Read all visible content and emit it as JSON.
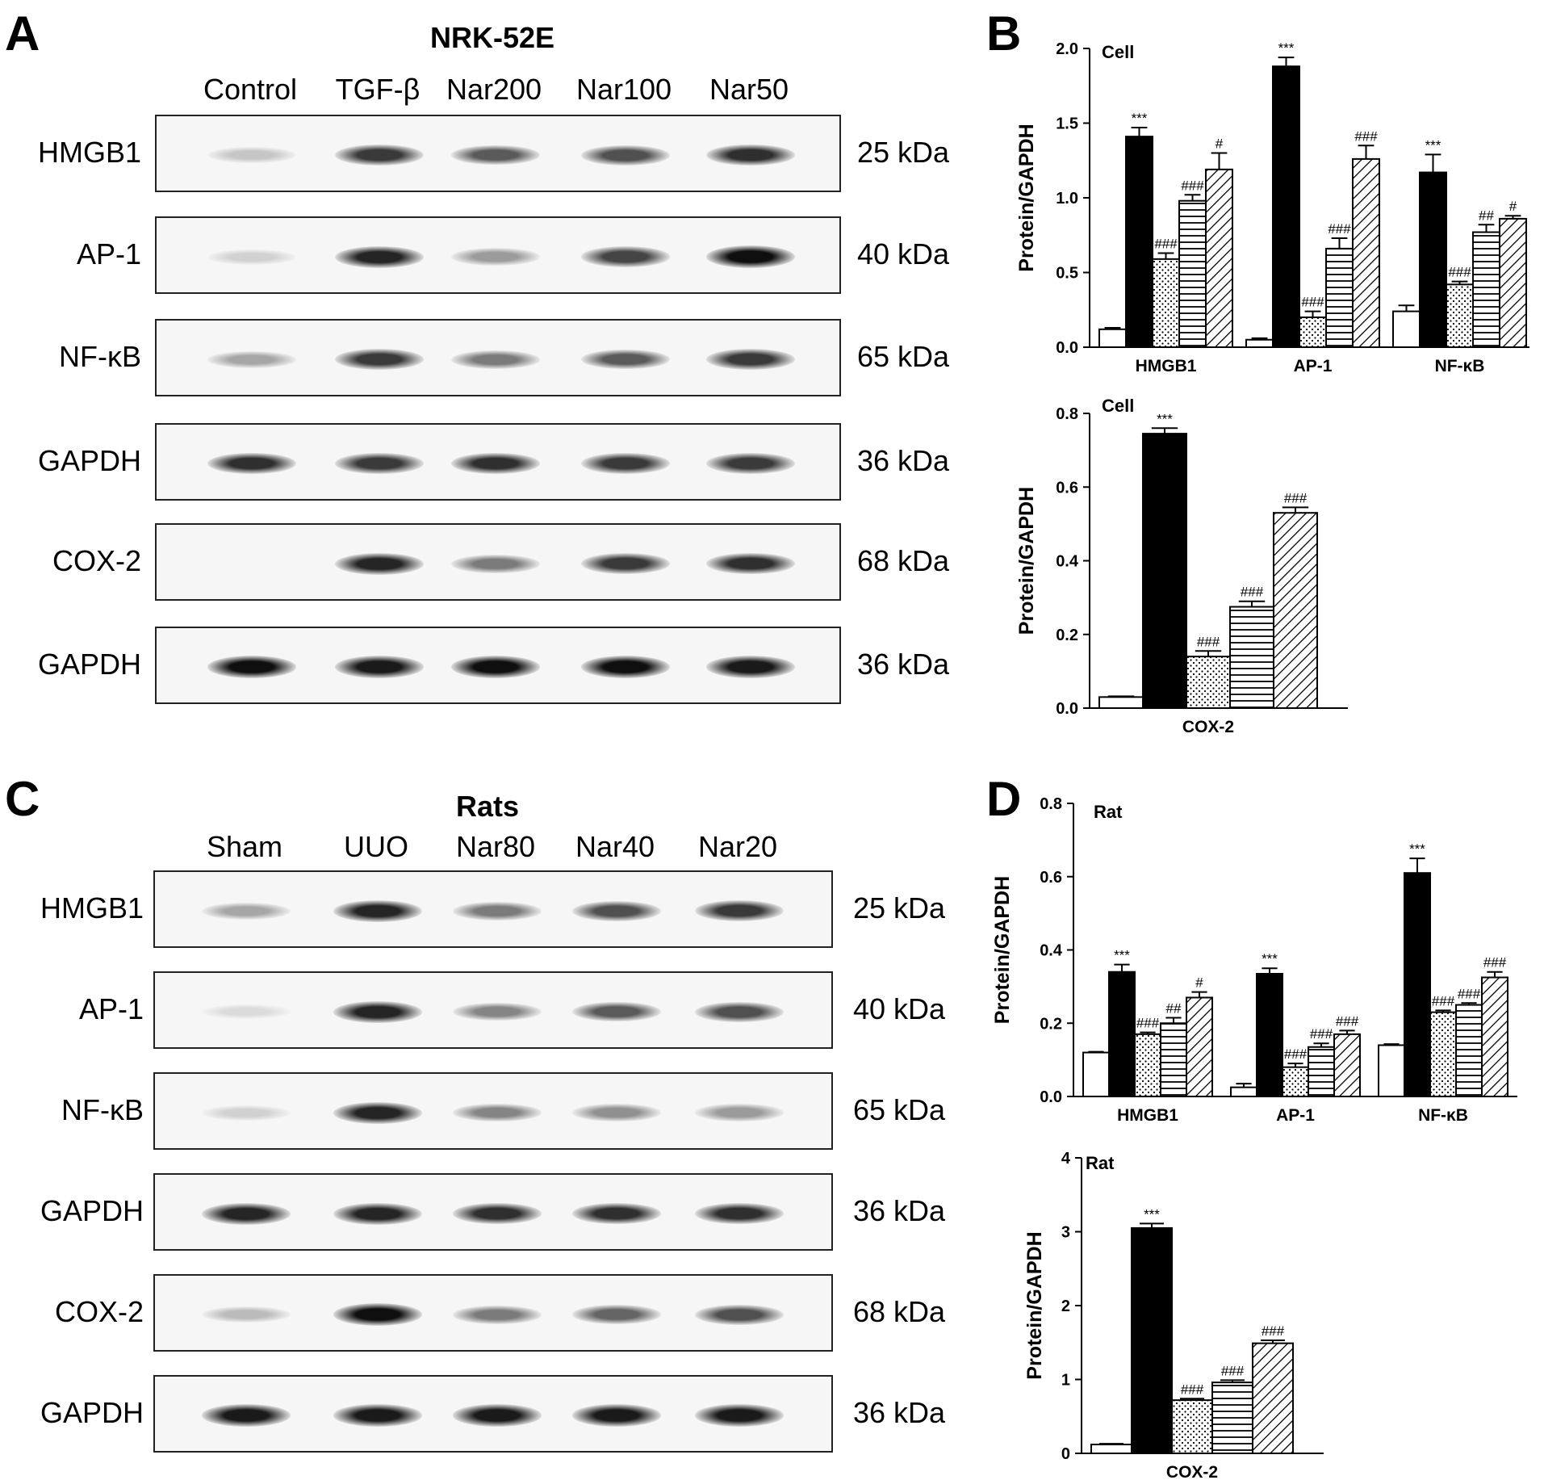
{
  "panels": {
    "A": {
      "letter": "A",
      "title": "NRK-52E",
      "lanes": [
        "Control",
        "TGF-β",
        "Nar200",
        "Nar100",
        "Nar50"
      ],
      "rows": [
        {
          "protein": "HMGB1",
          "kda": "25 kDa"
        },
        {
          "protein": "AP-1",
          "kda": "40 kDa"
        },
        {
          "protein": "NF-κB",
          "kda": "65 kDa"
        },
        {
          "protein": "GAPDH",
          "kda": "36 kDa"
        },
        {
          "protein": "COX-2",
          "kda": "68 kDa"
        },
        {
          "protein": "GAPDH",
          "kda": "36 kDa"
        }
      ]
    },
    "B": {
      "letter": "B"
    },
    "C": {
      "letter": "C",
      "title": "Rats",
      "lanes": [
        "Sham",
        "UUO",
        "Nar80",
        "Nar40",
        "Nar20"
      ],
      "rows": [
        {
          "protein": "HMGB1",
          "kda": "25 kDa"
        },
        {
          "protein": "AP-1",
          "kda": "40 kDa"
        },
        {
          "protein": "NF-κB",
          "kda": "65 kDa"
        },
        {
          "protein": "GAPDH",
          "kda": "36 kDa"
        },
        {
          "protein": "COX-2",
          "kda": "68 kDa"
        },
        {
          "protein": "GAPDH",
          "kda": "36 kDa"
        }
      ]
    },
    "D": {
      "letter": "D"
    }
  },
  "band_intensity": {
    "A": [
      [
        0.15,
        0.8,
        0.65,
        0.7,
        0.85
      ],
      [
        0.1,
        0.9,
        0.35,
        0.75,
        1.0
      ],
      [
        0.3,
        0.8,
        0.5,
        0.65,
        0.8
      ],
      [
        0.85,
        0.8,
        0.85,
        0.8,
        0.8
      ],
      [
        0.0,
        0.9,
        0.5,
        0.8,
        0.85
      ],
      [
        1.0,
        0.95,
        1.0,
        1.0,
        0.95
      ]
    ],
    "C": [
      [
        0.3,
        0.9,
        0.5,
        0.7,
        0.8
      ],
      [
        0.05,
        0.9,
        0.45,
        0.65,
        0.7
      ],
      [
        0.1,
        0.9,
        0.45,
        0.4,
        0.35
      ],
      [
        0.9,
        0.9,
        0.85,
        0.85,
        0.85
      ],
      [
        0.2,
        1.0,
        0.5,
        0.6,
        0.7
      ],
      [
        0.95,
        0.95,
        0.95,
        0.95,
        0.95
      ]
    ]
  },
  "chart_data": [
    {
      "id": "B-top",
      "type": "bar",
      "title": "Cell",
      "ylabel": "Protein/GAPDH",
      "categories": [
        "HMGB1",
        "AP-1",
        "NF-κB"
      ],
      "ylim": [
        0,
        2.0
      ],
      "yticks": [
        "0.0",
        "0.5",
        "1.0",
        "1.5",
        "2.0"
      ],
      "series": [
        {
          "values": [
            0.12,
            0.05,
            0.24
          ],
          "errors": [
            0.01,
            0.01,
            0.04
          ],
          "marks": [
            "",
            "",
            ""
          ]
        },
        {
          "values": [
            1.41,
            1.88,
            1.17
          ],
          "errors": [
            0.06,
            0.06,
            0.12
          ],
          "marks": [
            "***",
            "***",
            "***"
          ]
        },
        {
          "values": [
            0.59,
            0.2,
            0.42
          ],
          "errors": [
            0.04,
            0.04,
            0.02
          ],
          "marks": [
            "###",
            "###",
            "###"
          ]
        },
        {
          "values": [
            0.98,
            0.66,
            0.77
          ],
          "errors": [
            0.04,
            0.07,
            0.05
          ],
          "marks": [
            "###",
            "###",
            "##"
          ]
        },
        {
          "values": [
            1.19,
            1.26,
            0.86
          ],
          "errors": [
            0.11,
            0.09,
            0.02
          ],
          "marks": [
            "#",
            "###",
            "#"
          ]
        }
      ]
    },
    {
      "id": "B-bottom",
      "type": "bar",
      "title": "Cell",
      "ylabel": "Protein/GAPDH",
      "categories": [
        "COX-2"
      ],
      "ylim": [
        0,
        0.8
      ],
      "yticks": [
        "0.0",
        "0.2",
        "0.4",
        "0.6",
        "0.8"
      ],
      "series": [
        {
          "values": [
            0.03
          ],
          "errors": [
            0.002
          ],
          "marks": [
            ""
          ]
        },
        {
          "values": [
            0.745
          ],
          "errors": [
            0.015
          ],
          "marks": [
            "***"
          ]
        },
        {
          "values": [
            0.14
          ],
          "errors": [
            0.015
          ],
          "marks": [
            "###"
          ]
        },
        {
          "values": [
            0.275
          ],
          "errors": [
            0.015
          ],
          "marks": [
            "###"
          ]
        },
        {
          "values": [
            0.53
          ],
          "errors": [
            0.015
          ],
          "marks": [
            "###"
          ]
        }
      ]
    },
    {
      "id": "D-top",
      "type": "bar",
      "title": "Rat",
      "ylabel": "Protein/GAPDH",
      "categories": [
        "HMGB1",
        "AP-1",
        "NF-κB"
      ],
      "ylim": [
        0,
        0.8
      ],
      "yticks": [
        "0.0",
        "0.2",
        "0.4",
        "0.6",
        "0.8"
      ],
      "series": [
        {
          "values": [
            0.12,
            0.025,
            0.14
          ],
          "errors": [
            0.002,
            0.01,
            0.003
          ],
          "marks": [
            "",
            "",
            ""
          ]
        },
        {
          "values": [
            0.34,
            0.335,
            0.61
          ],
          "errors": [
            0.02,
            0.015,
            0.04
          ],
          "marks": [
            "***",
            "***",
            "***"
          ]
        },
        {
          "values": [
            0.17,
            0.08,
            0.23
          ],
          "errors": [
            0.005,
            0.01,
            0.005
          ],
          "marks": [
            "###",
            "###",
            "###"
          ]
        },
        {
          "values": [
            0.2,
            0.135,
            0.25
          ],
          "errors": [
            0.015,
            0.01,
            0.005
          ],
          "marks": [
            "##",
            "###",
            "###"
          ]
        },
        {
          "values": [
            0.27,
            0.17,
            0.325
          ],
          "errors": [
            0.015,
            0.01,
            0.015
          ],
          "marks": [
            "#",
            "###",
            "###"
          ]
        }
      ]
    },
    {
      "id": "D-bottom",
      "type": "bar",
      "title": "Rat",
      "ylabel": "Protein/GAPDH",
      "categories": [
        "COX-2"
      ],
      "ylim": [
        0,
        4
      ],
      "yticks": [
        "0",
        "1",
        "2",
        "3",
        "4"
      ],
      "series": [
        {
          "values": [
            0.12
          ],
          "errors": [
            0.01
          ],
          "marks": [
            ""
          ]
        },
        {
          "values": [
            3.05
          ],
          "errors": [
            0.06
          ],
          "marks": [
            "***"
          ]
        },
        {
          "values": [
            0.72
          ],
          "errors": [
            0.02
          ],
          "marks": [
            "###"
          ]
        },
        {
          "values": [
            0.96
          ],
          "errors": [
            0.03
          ],
          "marks": [
            "###"
          ]
        },
        {
          "values": [
            1.49
          ],
          "errors": [
            0.04
          ],
          "marks": [
            "###"
          ]
        }
      ]
    }
  ],
  "styles": {
    "bar_outline": "#000000",
    "fills": [
      "white",
      "black",
      "dots",
      "horizontal-lines",
      "diagonal-lines"
    ]
  }
}
